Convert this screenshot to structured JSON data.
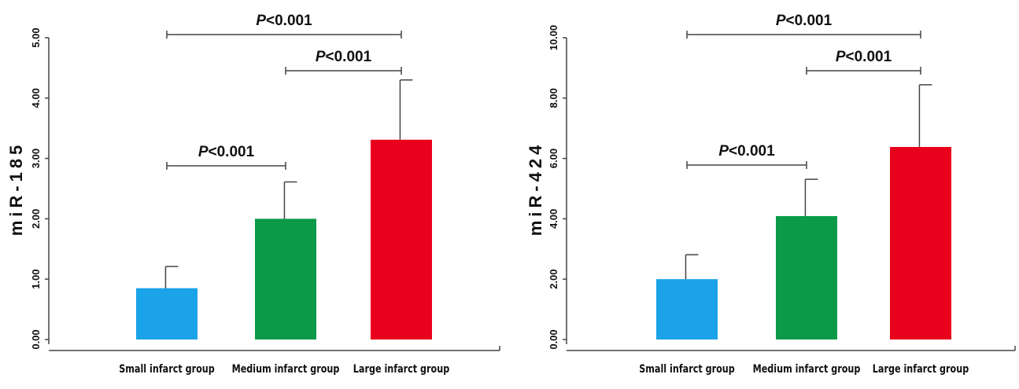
{
  "chart_data": [
    {
      "type": "bar",
      "ylabel": "miR-185",
      "categories": [
        "Small infarct group",
        "Medium infarct group",
        "Large infarct group"
      ],
      "values": [
        0.85,
        2.0,
        3.31
      ],
      "errors": [
        0.36,
        0.61,
        0.99
      ],
      "colors": [
        "#1aa3e8",
        "#0a9a48",
        "#e8001c"
      ],
      "ylim": [
        0,
        5
      ],
      "yticks": [
        {
          "value": 0,
          "label": "0.00"
        },
        {
          "value": 1,
          "label": "1.00"
        },
        {
          "value": 2,
          "label": "2.00"
        },
        {
          "value": 3,
          "label": "3.00"
        },
        {
          "value": 4,
          "label": "4.00"
        },
        {
          "value": 5,
          "label": "5.00"
        }
      ],
      "annotations": [
        "P<0.001",
        "P<0.001",
        "P<0.001"
      ]
    },
    {
      "type": "bar",
      "ylabel": "miR-424",
      "categories": [
        "Small infarct group",
        "Medium infarct group",
        "Large infarct group"
      ],
      "values": [
        2.0,
        4.09,
        6.38
      ],
      "errors": [
        0.81,
        1.22,
        2.06
      ],
      "colors": [
        "#1aa3e8",
        "#0a9a48",
        "#e8001c"
      ],
      "ylim": [
        0,
        10
      ],
      "yticks": [
        {
          "value": 0,
          "label": "0.00"
        },
        {
          "value": 2,
          "label": "2.00"
        },
        {
          "value": 4,
          "label": "4.00"
        },
        {
          "value": 6,
          "label": "6.00"
        },
        {
          "value": 8,
          "label": "8.00"
        },
        {
          "value": 10,
          "label": "10.00"
        }
      ],
      "annotations": [
        "P<0.001",
        "P<0.001",
        "P<0.001"
      ]
    }
  ]
}
